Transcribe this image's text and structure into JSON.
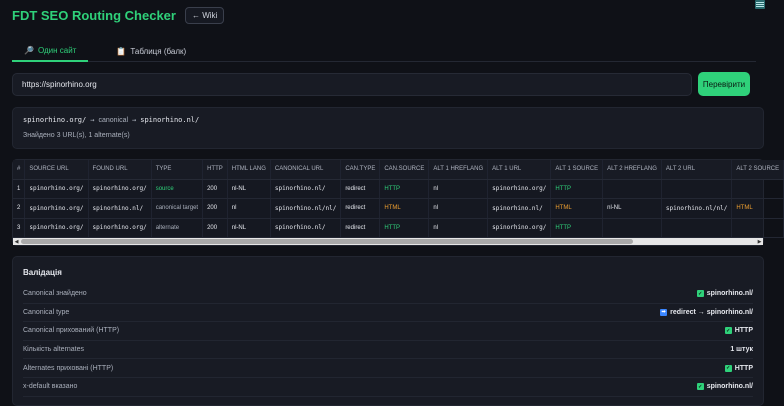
{
  "app": {
    "title": "FDT SEO Routing Checker",
    "wiki_label": "← Wiki"
  },
  "tabs": [
    {
      "icon": "🔎",
      "label": "Один сайт",
      "active": true
    },
    {
      "icon": "📋",
      "label": "Таблиця (балк)",
      "active": false
    }
  ],
  "search": {
    "value": "https://spinorhino.org",
    "button_label": "Перевірити"
  },
  "summary": {
    "source": "spinorhino.org/",
    "arrow": "→",
    "via": "canonical",
    "target": "spinorhino.nl/",
    "found": "Знайдено 3 URL(s), 1 alternate(s)"
  },
  "table": {
    "columns": [
      "#",
      "SOURCE URL",
      "FOUND URL",
      "TYPE",
      "HTTP",
      "HTML LANG",
      "CANONICAL URL",
      "CAN.TYPE",
      "CAN.SOURCE",
      "ALT 1 HREFLANG",
      "ALT 1 URL",
      "ALT 1 SOURCE",
      "ALT 2 HREFLANG",
      "ALT 2 URL",
      "ALT 2 SOURCE"
    ],
    "rows": [
      [
        "1",
        "spinorhino.org/",
        "spinorhino.org/",
        "source",
        "200",
        "nl-NL",
        "spinorhino.nl/",
        "redirect",
        "HTTP",
        "nl",
        "spinorhino.org/",
        "HTTP",
        "",
        "",
        ""
      ],
      [
        "2",
        "spinorhino.org/",
        "spinorhino.nl/",
        "canonical target",
        "200",
        "nl",
        "spinorhino.nl/nl/",
        "redirect",
        "HTML",
        "nl",
        "spinorhino.nl/",
        "HTML",
        "nl-NL",
        "spinorhino.nl/nl/",
        "HTML"
      ],
      [
        "3",
        "spinorhino.org/",
        "spinorhino.org/",
        "alternate",
        "200",
        "nl-NL",
        "spinorhino.nl/",
        "redirect",
        "HTTP",
        "nl",
        "spinorhino.org/",
        "HTTP",
        "",
        "",
        ""
      ]
    ]
  },
  "validation": {
    "title": "Валідація",
    "items": [
      {
        "label": "Canonical знайдено",
        "icon": "check",
        "value": "spinorhino.nl/"
      },
      {
        "label": "Canonical type",
        "icon": "arrow",
        "value": "redirect → spinorhino.nl/"
      },
      {
        "label": "Canonical прихований (HTTP)",
        "icon": "check",
        "value": "HTTP"
      },
      {
        "label": "Кількість alternates",
        "icon": "",
        "value": "1 штук"
      },
      {
        "label": "Alternates приховані (HTTP)",
        "icon": "check",
        "value": "HTTP"
      },
      {
        "label": "x-default вказано",
        "icon": "check",
        "value": "spinorhino.nl/"
      }
    ]
  },
  "colors": {
    "accent": "#2fd17a",
    "html_source": "#f0a030",
    "background": "#0f1117"
  }
}
